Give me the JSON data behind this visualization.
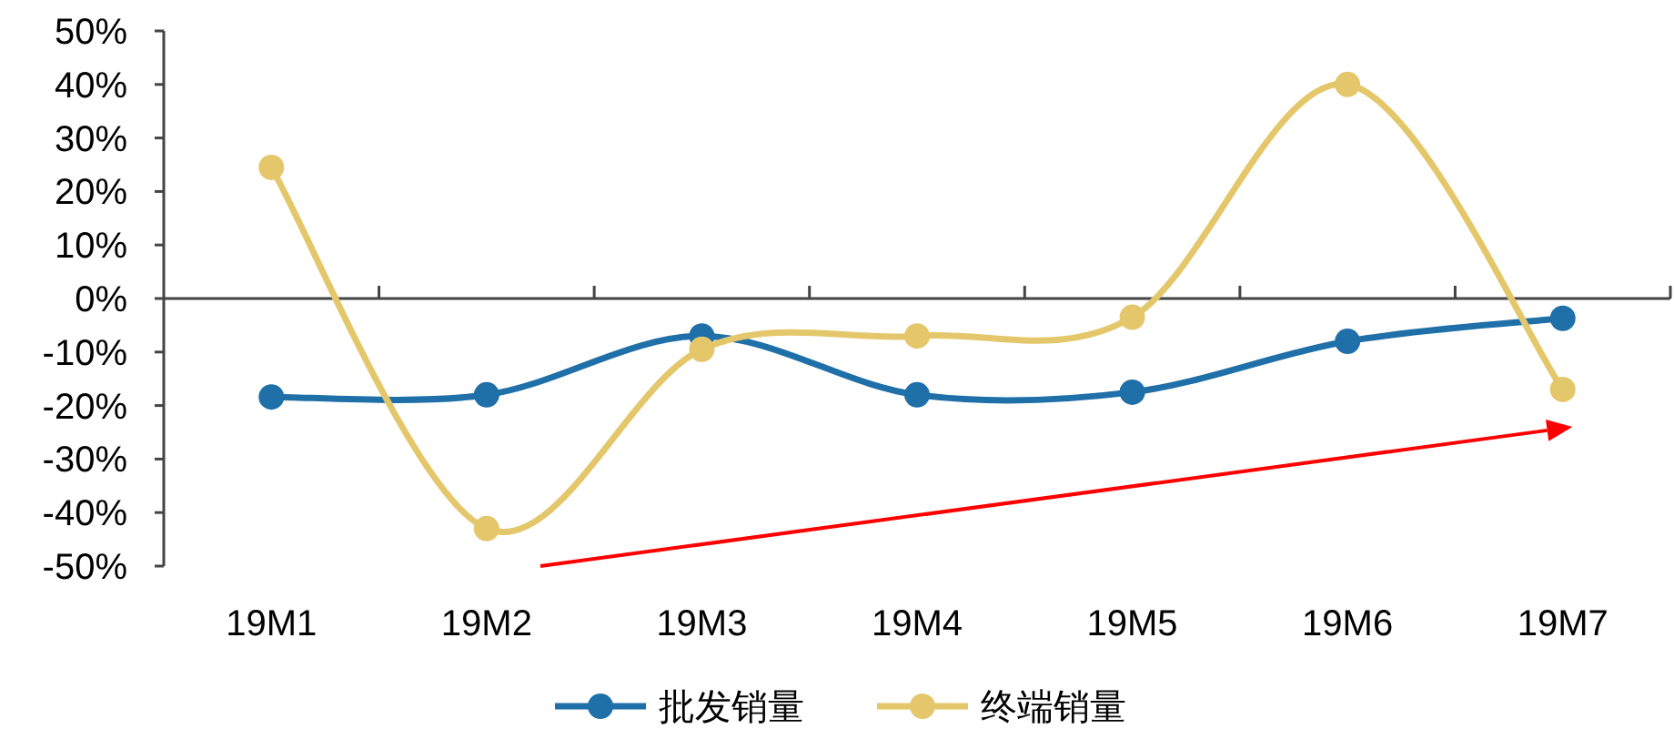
{
  "chart_data": {
    "type": "line",
    "categories": [
      "19M1",
      "19M2",
      "19M3",
      "19M4",
      "19M5",
      "19M6",
      "19M7"
    ],
    "series": [
      {
        "name": "批发销量",
        "color": "#1f6fa8",
        "values": [
          -18.4,
          -18,
          -7,
          -18,
          -17.5,
          -8,
          -3.7
        ]
      },
      {
        "name": "终端销量",
        "color": "#e5c76b",
        "values": [
          24.5,
          -43,
          -9.5,
          -7,
          -3.5,
          40,
          -17
        ]
      }
    ],
    "ylim": [
      -50,
      50
    ],
    "yticks": [
      {
        "value": 50,
        "label": "50%"
      },
      {
        "value": 40,
        "label": "40%"
      },
      {
        "value": 30,
        "label": "30%"
      },
      {
        "value": 20,
        "label": "20%"
      },
      {
        "value": 10,
        "label": "10%"
      },
      {
        "value": 0,
        "label": "0%"
      },
      {
        "value": -10,
        "label": "-10%"
      },
      {
        "value": -20,
        "label": "-20%"
      },
      {
        "value": -30,
        "label": "-30%"
      },
      {
        "value": -40,
        "label": "-40%"
      },
      {
        "value": -50,
        "label": "-50%"
      }
    ],
    "marker": "circle",
    "line_style": "solid",
    "legend": "bottom"
  }
}
